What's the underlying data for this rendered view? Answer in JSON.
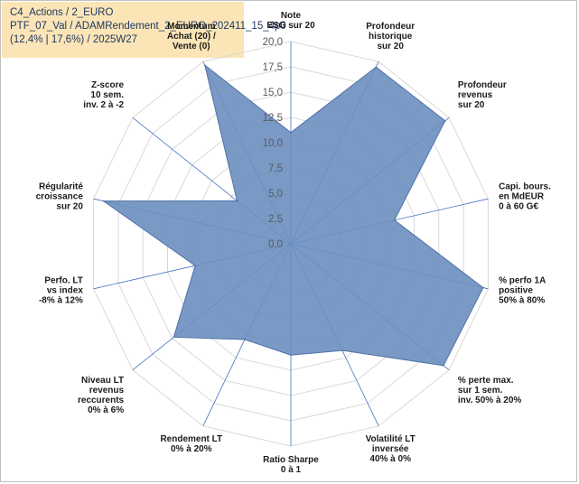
{
  "header": {
    "line1": "C4_Actions / 2_EURO",
    "line2": "PTF_07_Val / ADAMRendement_2_EURO_202411_15_4p0",
    "line3": "(12,4% | 17,6%) / 2025W27"
  },
  "chart_data": {
    "type": "radar",
    "r_min": 0,
    "r_max": 20,
    "ticks": [
      "0,0",
      "2,5",
      "5,0",
      "7,5",
      "10,0",
      "12,5",
      "15,0",
      "17,5",
      "20,0"
    ],
    "grid": true,
    "colors": {
      "fill": "#6b8fbf",
      "stroke": "#4f71a7",
      "grid": "#d9d9d9",
      "spoke": "#4472c4"
    },
    "axes": [
      {
        "lines": [
          "Note",
          "ESG sur 20"
        ],
        "value": 11.0
      },
      {
        "lines": [
          "Profondeur",
          "historique",
          "sur 20"
        ],
        "value": 19.4
      },
      {
        "lines": [
          "Profondeur",
          "revenus",
          "sur 20"
        ],
        "value": 19.5
      },
      {
        "lines": [
          "Capi. bours.",
          "en MdEUR",
          "0 à 60 G€"
        ],
        "value": 10.5
      },
      {
        "lines": [
          "% perfo 1A",
          "positive",
          "50% à 80%"
        ],
        "value": 19.5
      },
      {
        "lines": [
          "% perte max.",
          "sur 1 sem.",
          "inv. 50% à 20%"
        ],
        "value": 19.3
      },
      {
        "lines": [
          "Volatilité LT",
          "inversée",
          "40% à 0%"
        ],
        "value": 11.7
      },
      {
        "lines": [
          "Ratio Sharpe",
          "0 à 1"
        ],
        "value": 11.0
      },
      {
        "lines": [
          "Rendement LT",
          "0% à 20%"
        ],
        "value": 10.5
      },
      {
        "lines": [
          "Niveau LT",
          "revenus",
          "reccurents",
          "0% à 6%"
        ],
        "value": 14.8
      },
      {
        "lines": [
          "Perfo. LT",
          "vs index",
          "-8% à 12%"
        ],
        "value": 9.7
      },
      {
        "lines": [
          "Régularité",
          "croissance",
          "sur 20"
        ],
        "value": 19.0
      },
      {
        "lines": [
          "Z-score",
          "10 sem.",
          "inv. 2 à -2"
        ],
        "value": 6.8
      },
      {
        "lines": [
          "Momentum",
          "Achat (20) /",
          "Vente (0)"
        ],
        "value": 19.6
      }
    ]
  }
}
